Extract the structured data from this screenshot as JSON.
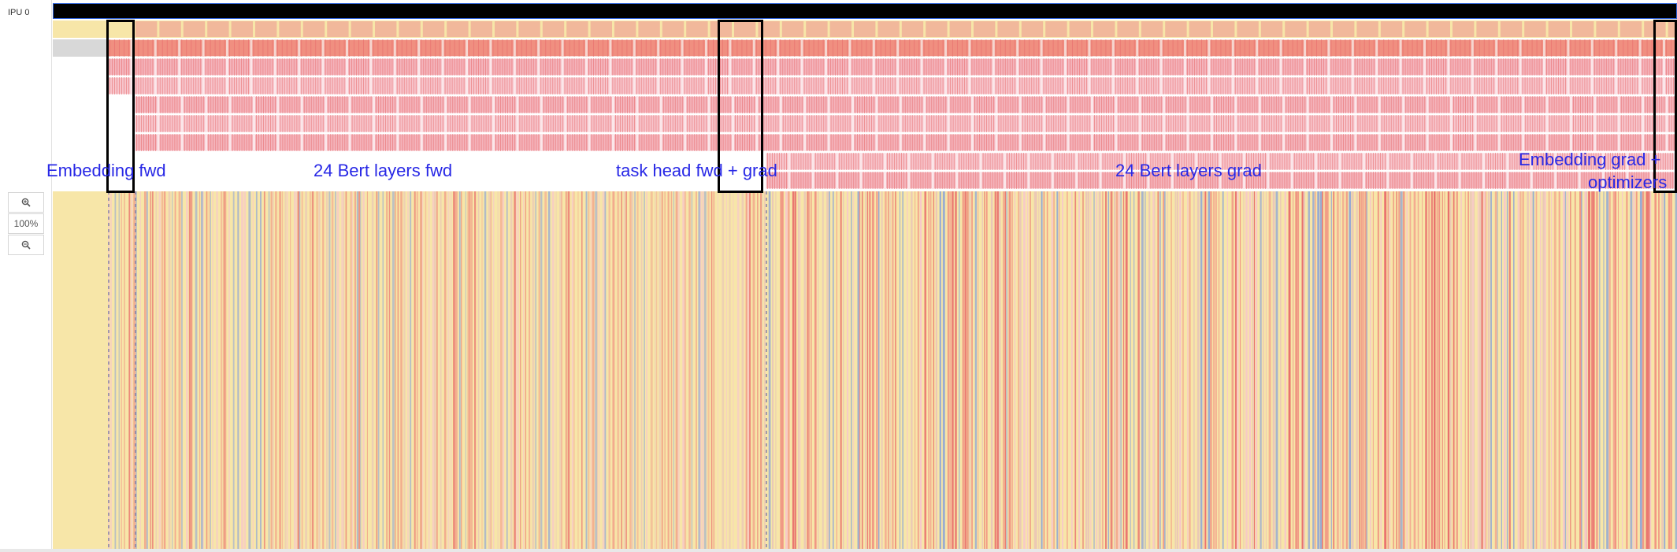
{
  "panel": {
    "ipu_label": "IPU 0",
    "zoom_in_icon": "zoom-in-icon",
    "zoom_level": "100%",
    "zoom_out_icon": "zoom-out-icon"
  },
  "annotations": [
    "Embedding fwd",
    "24 Bert layers fwd",
    "task head fwd + grad",
    "24 Bert layers grad",
    "Embedding grad +",
    "optimizers"
  ],
  "colors": {
    "background_yellow": "#f7e6a8",
    "block_peach": "#f1b89b",
    "block_salmon": "#f08f80",
    "block_pink": "#f7c5cc",
    "stripe_red": "#e86a6a",
    "stripe_blue": "#8fa6d6",
    "label_blue": "#2828e6"
  }
}
